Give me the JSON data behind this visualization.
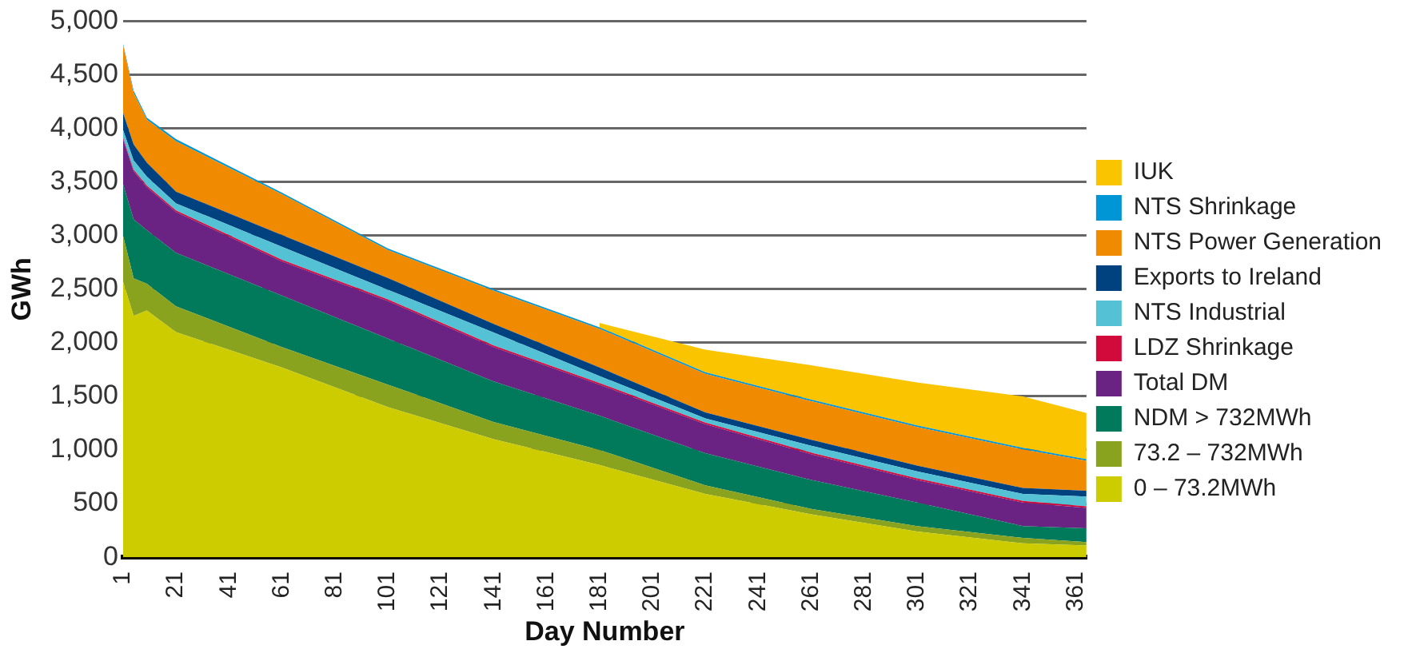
{
  "chart_data": {
    "type": "area",
    "stacked": true,
    "xlabel": "Day Number",
    "ylabel": "GWh",
    "x": [
      1,
      5,
      10,
      21,
      61,
      101,
      141,
      181,
      221,
      261,
      301,
      341,
      365
    ],
    "xlim": [
      1,
      365
    ],
    "xticks": [
      1,
      21,
      41,
      61,
      81,
      101,
      121,
      141,
      161,
      181,
      201,
      221,
      241,
      261,
      281,
      301,
      321,
      341,
      361
    ],
    "ylim": [
      0,
      5000
    ],
    "yticks": [
      0,
      500,
      {
        "value": 1000,
        "label": "1,000"
      },
      {
        "value": 1500,
        "label": "1,500"
      },
      {
        "value": 2000,
        "label": "2,000"
      },
      {
        "value": 2500,
        "label": "2,500"
      },
      {
        "value": 3000,
        "label": "3,000"
      },
      {
        "value": 3500,
        "label": "3,500"
      },
      {
        "value": 4000,
        "label": "4,000"
      },
      {
        "value": 4500,
        "label": "4,500"
      },
      {
        "value": 5000,
        "label": "5,000"
      }
    ],
    "grid": "y",
    "legend": "right",
    "series": [
      {
        "name": "0 – 73.2MWh",
        "color": "#cccc00",
        "values": [
          2570,
          2250,
          2300,
          2100,
          1770,
          1400,
          1100,
          860,
          590,
          400,
          240,
          130,
          110
        ]
      },
      {
        "name": "73.2 – 732MWh",
        "color": "#8aa31e",
        "values": [
          430,
          350,
          250,
          240,
          190,
          210,
          160,
          140,
          80,
          50,
          50,
          50,
          30
        ]
      },
      {
        "name": "NDM > 732MWh",
        "color": "#007a5a",
        "values": [
          480,
          550,
          500,
          500,
          480,
          430,
          380,
          320,
          300,
          270,
          220,
          110,
          130
        ]
      },
      {
        "name": "Total DM",
        "color": "#6a2383",
        "values": [
          420,
          450,
          400,
          380,
          320,
          350,
          320,
          290,
          270,
          240,
          210,
          220,
          190
        ]
      },
      {
        "name": "LDZ Shrinkage",
        "color": "#d20a3c",
        "values": [
          15,
          15,
          15,
          15,
          15,
          15,
          15,
          15,
          15,
          15,
          15,
          15,
          15
        ]
      },
      {
        "name": "NTS Industrial",
        "color": "#55c1d5",
        "values": [
          70,
          85,
          85,
          65,
          120,
          90,
          120,
          65,
          40,
          65,
          65,
          65,
          90
        ]
      },
      {
        "name": "Exports to Ireland",
        "color": "#004280",
        "values": [
          160,
          150,
          130,
          110,
          110,
          110,
          80,
          80,
          55,
          55,
          55,
          55,
          55
        ]
      },
      {
        "name": "NTS Power Generation",
        "color": "#f08a00",
        "values": [
          630,
          480,
          400,
          470,
          380,
          260,
          310,
          360,
          360,
          360,
          360,
          360,
          280
        ]
      },
      {
        "name": "NTS Shrinkage",
        "color": "#0096d6",
        "values": [
          15,
          20,
          20,
          20,
          15,
          15,
          15,
          15,
          15,
          15,
          15,
          15,
          15
        ]
      },
      {
        "name": "IUK",
        "color": "#fbc400",
        "values": [
          null,
          null,
          null,
          null,
          null,
          null,
          null,
          40,
          210,
          320,
          400,
          480,
          430
        ]
      }
    ]
  }
}
